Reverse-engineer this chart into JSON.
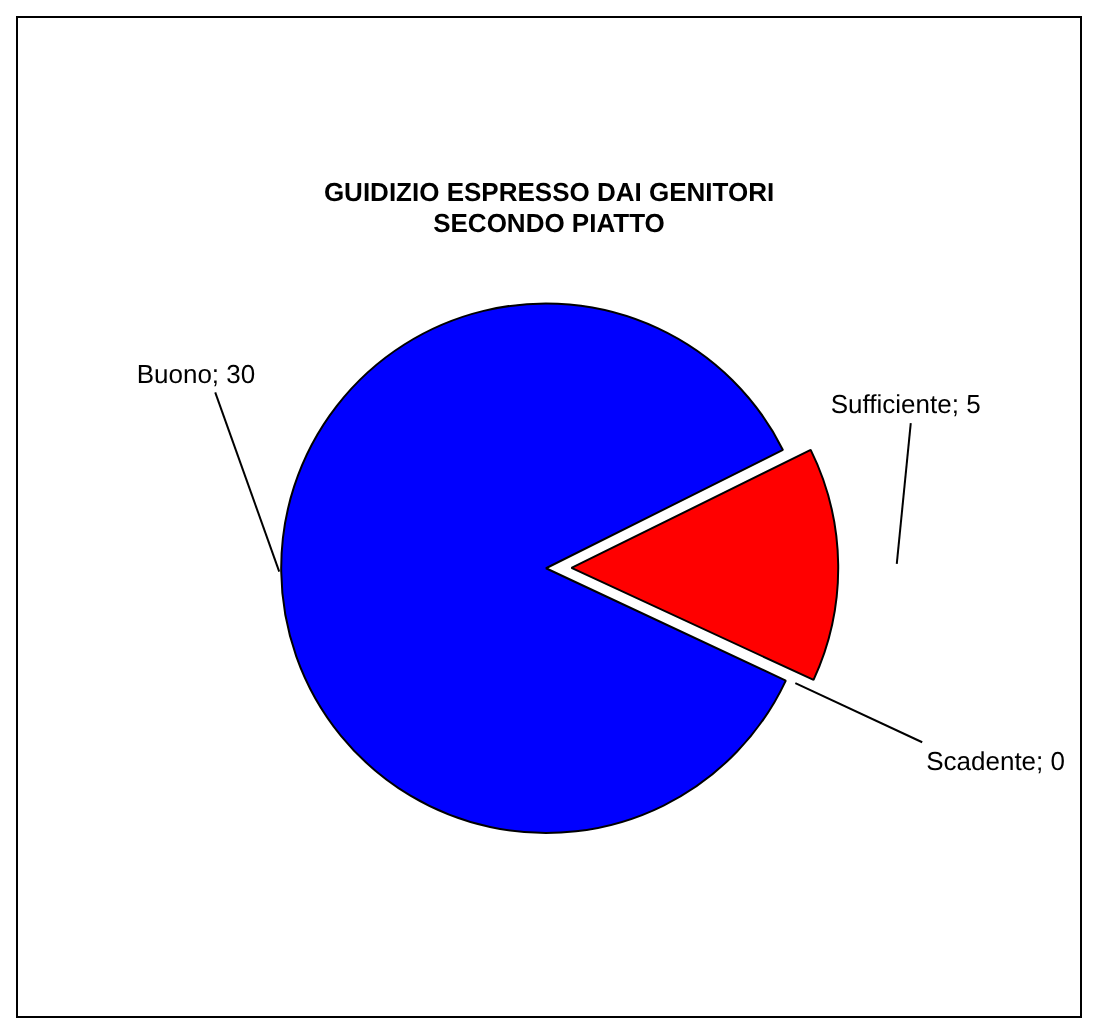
{
  "chart_data": {
    "type": "pie",
    "title": "GUIDIZIO ESPRESSO DAI GENITORI\nSECONDO PIATTO",
    "categories": [
      "Buono",
      "Sufficiente",
      "Scadente"
    ],
    "values": [
      30,
      5,
      0
    ],
    "colors": [
      "#0000ff",
      "#ff0000",
      "#ffff00"
    ],
    "value_labels": [
      "; 30",
      "; 5",
      "; 0"
    ],
    "legend": false
  }
}
